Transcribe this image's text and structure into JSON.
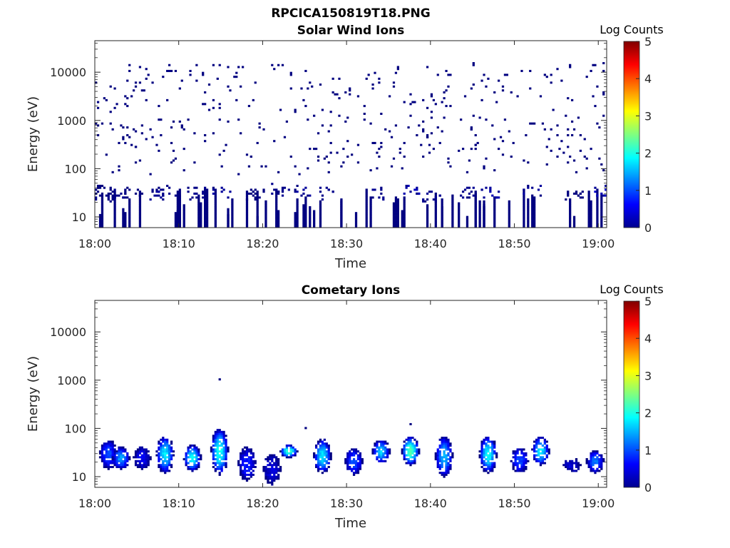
{
  "figure": {
    "title": "RPCICA150819T18.PNG"
  },
  "chart_data": [
    {
      "type": "heatmap",
      "title": "Solar Wind Ions",
      "xlabel": "Time",
      "ylabel": "Energy (eV)",
      "x_ticks": [
        "18:00",
        "18:10",
        "18:20",
        "18:30",
        "18:40",
        "18:50",
        "19:00"
      ],
      "x_range_minutes": [
        0,
        61
      ],
      "y_scale": "log",
      "y_range": [
        6,
        45000
      ],
      "y_ticks": [
        "10",
        "100",
        "1000",
        "10000"
      ],
      "colorbar": {
        "label": "Log Counts",
        "range": [
          0,
          5
        ],
        "ticks": [
          "0",
          "1",
          "2",
          "3",
          "4",
          "5"
        ],
        "colormap": "jet"
      },
      "grid": false,
      "description_of_data": "sparse single counts scattered at 100-15000 eV; denser low-count blocks at 10-40 eV",
      "clusters": [
        {
          "t": 0.3,
          "e": 30,
          "c": 0.1
        },
        {
          "t": 1.0,
          "e": 35,
          "c": 0.0
        },
        {
          "t": 2.5,
          "e": 28,
          "c": 0.1
        },
        {
          "t": 4.5,
          "e": 32,
          "c": 0.0
        },
        {
          "t": 7.5,
          "e": 30,
          "c": 0.2
        },
        {
          "t": 8.5,
          "e": 34,
          "c": 0.1
        },
        {
          "t": 12.0,
          "e": 32,
          "c": 0.1
        },
        {
          "t": 15.0,
          "e": 34,
          "c": 0.2
        },
        {
          "t": 19.0,
          "e": 30,
          "c": 0.0
        },
        {
          "t": 22.0,
          "e": 36,
          "c": 0.1
        },
        {
          "t": 24.5,
          "e": 34,
          "c": 0.2
        },
        {
          "t": 27.5,
          "e": 30,
          "c": 0.1
        },
        {
          "t": 33.5,
          "e": 32,
          "c": 0.1
        },
        {
          "t": 37.5,
          "e": 34,
          "c": 0.4
        },
        {
          "t": 40.0,
          "e": 28,
          "c": 0.1
        },
        {
          "t": 44.5,
          "e": 33,
          "c": 0.1
        },
        {
          "t": 47.0,
          "e": 32,
          "c": 0.3
        },
        {
          "t": 52.0,
          "e": 34,
          "c": 0.2
        },
        {
          "t": 57.0,
          "e": 30,
          "c": 0.0
        },
        {
          "t": 60.0,
          "e": 36,
          "c": 0.5
        }
      ],
      "scatter_energy_range": [
        80,
        15000
      ],
      "scatter_count": 420,
      "scatter_log_counts": 0.0
    },
    {
      "type": "heatmap",
      "title": "Cometary Ions",
      "xlabel": "Time",
      "ylabel": "Energy (eV)",
      "x_ticks": [
        "18:00",
        "18:10",
        "18:20",
        "18:30",
        "18:40",
        "18:50",
        "19:00"
      ],
      "x_range_minutes": [
        0,
        61
      ],
      "y_scale": "log",
      "y_range": [
        6,
        45000
      ],
      "y_ticks": [
        "10",
        "100",
        "1000",
        "10000"
      ],
      "colorbar": {
        "label": "Log Counts",
        "range": [
          0,
          5
        ],
        "ticks": [
          "0",
          "1",
          "2",
          "3",
          "4",
          "5"
        ],
        "colormap": "jet"
      },
      "grid": false,
      "bursts": [
        {
          "t": 1.5,
          "e_lo": 15,
          "e_hi": 60,
          "peak": 1.0
        },
        {
          "t": 3.0,
          "e_lo": 14,
          "e_hi": 40,
          "peak": 1.4
        },
        {
          "t": 5.5,
          "e_lo": 14,
          "e_hi": 40,
          "peak": 0.6
        },
        {
          "t": 8.2,
          "e_lo": 12,
          "e_hi": 70,
          "peak": 1.8
        },
        {
          "t": 11.5,
          "e_lo": 13,
          "e_hi": 45,
          "peak": 1.9
        },
        {
          "t": 14.8,
          "e_lo": 11,
          "e_hi": 100,
          "peak": 2.0
        },
        {
          "t": 18.0,
          "e_lo": 8,
          "e_hi": 40,
          "peak": 0.8
        },
        {
          "t": 21.0,
          "e_lo": 7,
          "e_hi": 30,
          "peak": 0.5
        },
        {
          "t": 23.0,
          "e_lo": 25,
          "e_hi": 45,
          "peak": 2.2
        },
        {
          "t": 27.0,
          "e_lo": 12,
          "e_hi": 60,
          "peak": 1.8
        },
        {
          "t": 30.8,
          "e_lo": 11,
          "e_hi": 40,
          "peak": 1.0
        },
        {
          "t": 34.0,
          "e_lo": 20,
          "e_hi": 60,
          "peak": 1.6
        },
        {
          "t": 37.5,
          "e_lo": 18,
          "e_hi": 70,
          "peak": 2.3
        },
        {
          "t": 41.5,
          "e_lo": 10,
          "e_hi": 70,
          "peak": 1.5
        },
        {
          "t": 46.8,
          "e_lo": 12,
          "e_hi": 70,
          "peak": 1.9
        },
        {
          "t": 50.5,
          "e_lo": 12,
          "e_hi": 40,
          "peak": 1.0
        },
        {
          "t": 53.0,
          "e_lo": 18,
          "e_hi": 70,
          "peak": 1.8
        },
        {
          "t": 56.8,
          "e_lo": 12,
          "e_hi": 25,
          "peak": 0.4
        },
        {
          "t": 59.5,
          "e_lo": 12,
          "e_hi": 35,
          "peak": 1.2
        }
      ]
    }
  ]
}
